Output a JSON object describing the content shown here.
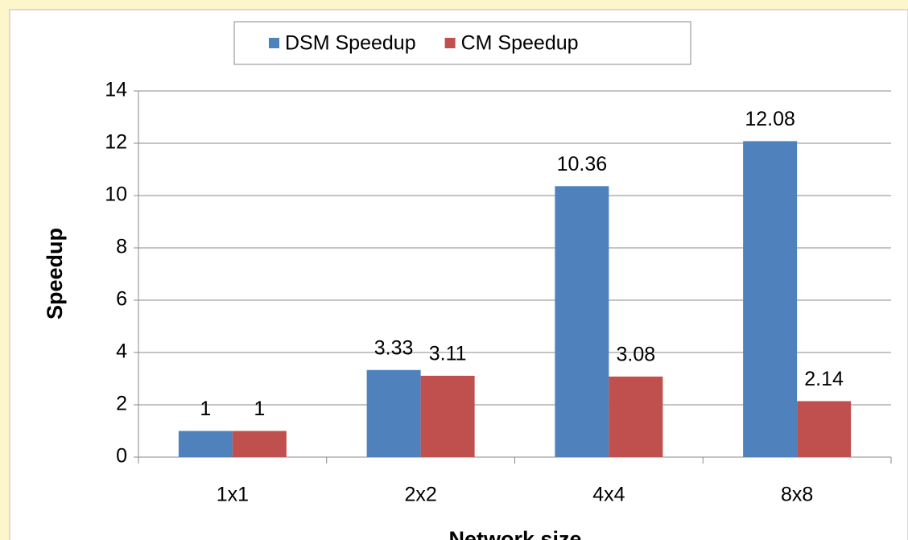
{
  "chart_data": {
    "type": "bar",
    "x_label": "Network size",
    "y_label": "Speedup",
    "categories": [
      "1x1",
      "2x2",
      "4x4",
      "8x8"
    ],
    "series": [
      {
        "name": "DSM Speedup",
        "color": "#4f81bd",
        "values": [
          1,
          3.33,
          10.36,
          12.08
        ]
      },
      {
        "name": "CM Speedup",
        "color": "#c0504d",
        "values": [
          1,
          3.11,
          3.08,
          2.14
        ]
      }
    ],
    "ylim": [
      0,
      14
    ],
    "yticks": [
      0,
      2,
      4,
      6,
      8,
      10,
      12,
      14
    ],
    "grid": true,
    "legend": "top"
  }
}
